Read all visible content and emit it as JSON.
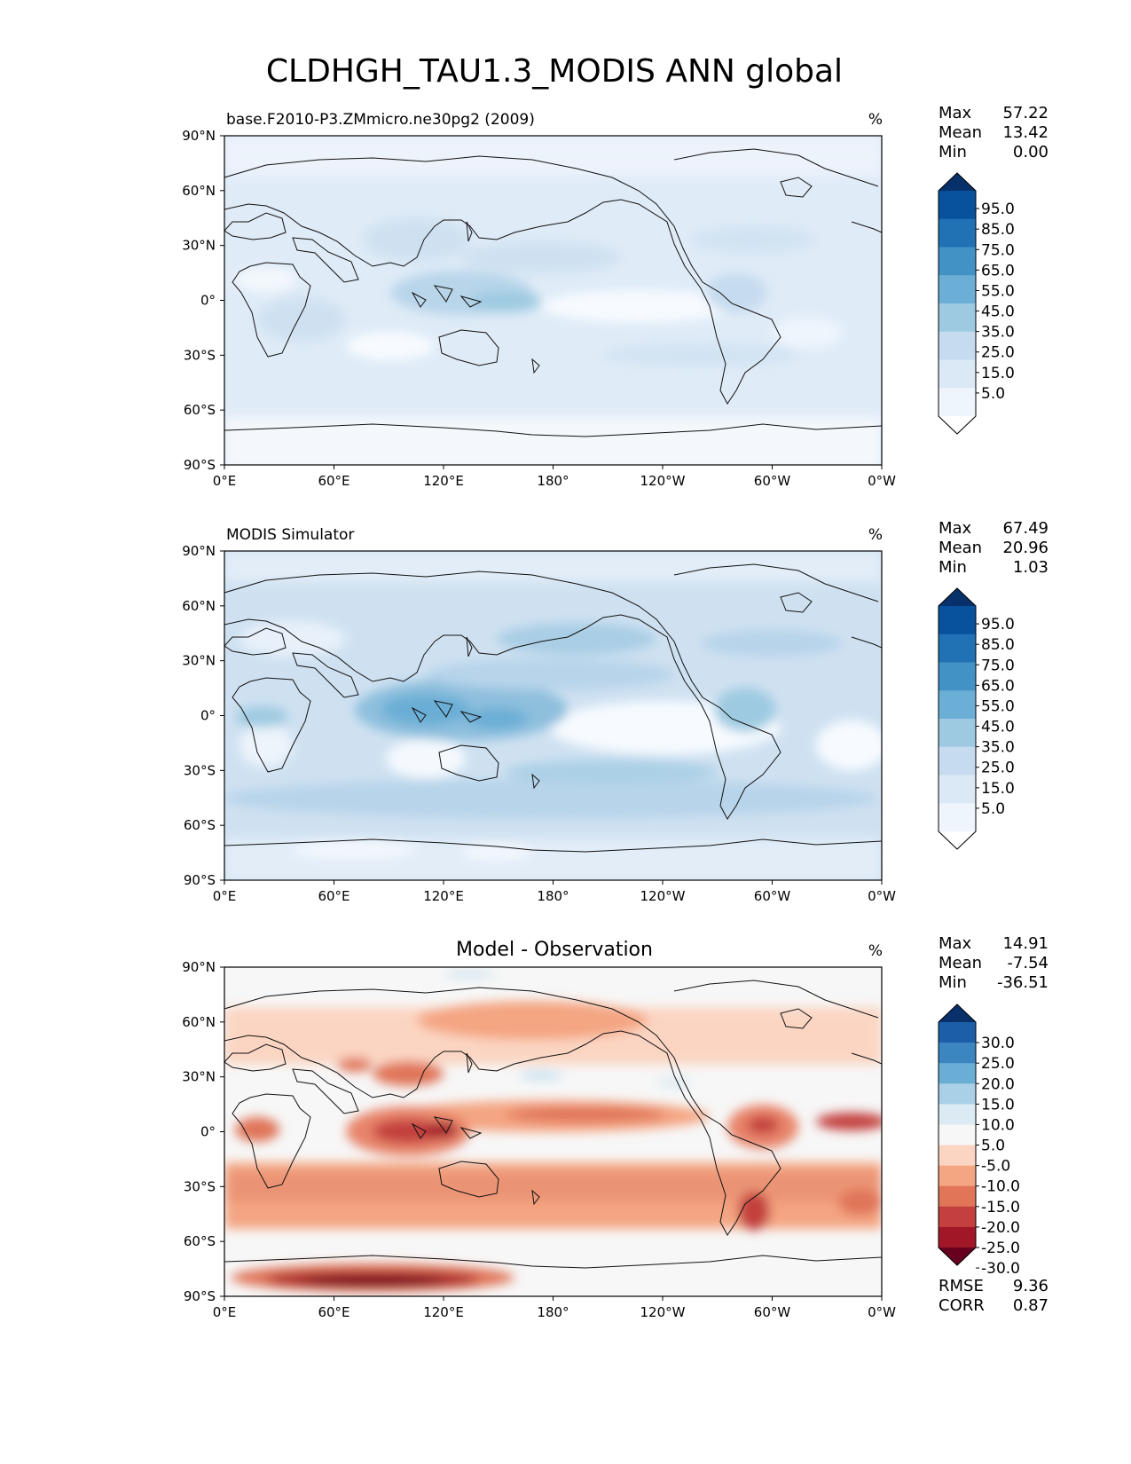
{
  "title": "CLDHGH_TAU1.3_MODIS ANN global",
  "axes": {
    "lat_ticks": [
      "90°N",
      "60°N",
      "30°N",
      "0°",
      "30°S",
      "60°S",
      "90°S"
    ],
    "lon_ticks": [
      "0°E",
      "60°E",
      "120°E",
      "180°",
      "120°W",
      "60°W",
      "0°W"
    ]
  },
  "panels": [
    {
      "id": "model",
      "subtitle_left": "base.F2010-P3.ZMmicro.ne30pg2 (2009)",
      "subtitle_center": "",
      "units": "%",
      "stats": [
        {
          "label": "Max",
          "value": "57.22"
        },
        {
          "label": "Mean",
          "value": "13.42"
        },
        {
          "label": "Min",
          "value": "0.00"
        }
      ],
      "colorbar": {
        "labels": [
          "95.0",
          "85.0",
          "75.0",
          "65.0",
          "55.0",
          "45.0",
          "35.0",
          "25.0",
          "15.0",
          "5.0"
        ],
        "colors_top_to_bottom": [
          "#08306b",
          "#08519c",
          "#2171b5",
          "#4292c6",
          "#6baed6",
          "#9ecae1",
          "#c6dbef",
          "#dbe9f6",
          "#eef5fc",
          "#ffffff"
        ]
      }
    },
    {
      "id": "obs",
      "subtitle_left": "MODIS Simulator",
      "subtitle_center": "",
      "units": "%",
      "stats": [
        {
          "label": "Max",
          "value": "67.49"
        },
        {
          "label": "Mean",
          "value": "20.96"
        },
        {
          "label": "Min",
          "value": "1.03"
        }
      ],
      "colorbar": {
        "labels": [
          "95.0",
          "85.0",
          "75.0",
          "65.0",
          "55.0",
          "45.0",
          "35.0",
          "25.0",
          "15.0",
          "5.0"
        ],
        "colors_top_to_bottom": [
          "#08306b",
          "#08519c",
          "#2171b5",
          "#4292c6",
          "#6baed6",
          "#9ecae1",
          "#c6dbef",
          "#dbe9f6",
          "#eef5fc",
          "#ffffff"
        ]
      }
    },
    {
      "id": "diff",
      "subtitle_left": "",
      "subtitle_center": "Model - Observation",
      "units": "%",
      "stats": [
        {
          "label": "Max",
          "value": "14.91"
        },
        {
          "label": "Mean",
          "value": "-7.54"
        },
        {
          "label": "Min",
          "value": "-36.51"
        }
      ],
      "extra_stats": [
        {
          "label": "RMSE",
          "value": "9.36"
        },
        {
          "label": "CORR",
          "value": "0.87"
        }
      ],
      "colorbar": {
        "labels": [
          "30.0",
          "25.0",
          "20.0",
          "15.0",
          "10.0",
          "5.0",
          "-5.0",
          "-10.0",
          "-15.0",
          "-20.0",
          "-25.0",
          "-30.0"
        ],
        "colors_top_to_bottom": [
          "#08306b",
          "#1c5fa8",
          "#3b86c0",
          "#6aaed6",
          "#a9d0e6",
          "#dbeaf3",
          "#f7f7f7",
          "#fbd5c2",
          "#f4a582",
          "#e07558",
          "#c3403e",
          "#a11727",
          "#67001f"
        ]
      }
    }
  ]
}
